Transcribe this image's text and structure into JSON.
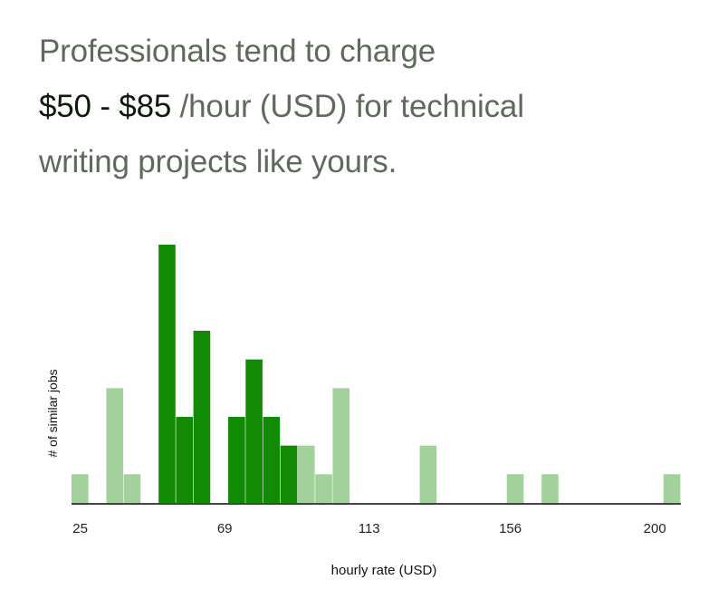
{
  "headline": {
    "line1": "Professionals tend to charge",
    "range": "$50 - $85",
    "line2_rest": " /hour (USD) for technical",
    "line3": "writing projects like yours."
  },
  "chart_data": {
    "type": "bar",
    "title": "Professionals tend to charge $50 - $85 /hour (USD) for technical writing projects like yours.",
    "xlabel": "hourly rate (USD)",
    "ylabel": "# of similar jobs",
    "bin_count": 35,
    "xlim": [
      25,
      200
    ],
    "x_ticks": [
      25,
      69,
      113,
      156,
      200
    ],
    "bins": [
      {
        "index": 0,
        "count": 1,
        "highlight": false
      },
      {
        "index": 2,
        "count": 4,
        "highlight": false
      },
      {
        "index": 3,
        "count": 1,
        "highlight": false
      },
      {
        "index": 5,
        "count": 9,
        "highlight": true
      },
      {
        "index": 6,
        "count": 3,
        "highlight": true
      },
      {
        "index": 7,
        "count": 6,
        "highlight": true
      },
      {
        "index": 9,
        "count": 3,
        "highlight": true
      },
      {
        "index": 10,
        "count": 5,
        "highlight": true
      },
      {
        "index": 11,
        "count": 3,
        "highlight": true
      },
      {
        "index": 12,
        "count": 2,
        "highlight": true
      },
      {
        "index": 13,
        "count": 2,
        "highlight": false
      },
      {
        "index": 14,
        "count": 1,
        "highlight": false
      },
      {
        "index": 15,
        "count": 4,
        "highlight": false
      },
      {
        "index": 20,
        "count": 2,
        "highlight": false
      },
      {
        "index": 25,
        "count": 1,
        "highlight": false
      },
      {
        "index": 27,
        "count": 1,
        "highlight": false
      },
      {
        "index": 34,
        "count": 1,
        "highlight": false
      }
    ],
    "ylim": [
      0,
      9
    ],
    "grid": false,
    "colors": {
      "highlight": "#138a05",
      "normal": "#a2d19c",
      "axis": "#444444"
    }
  }
}
